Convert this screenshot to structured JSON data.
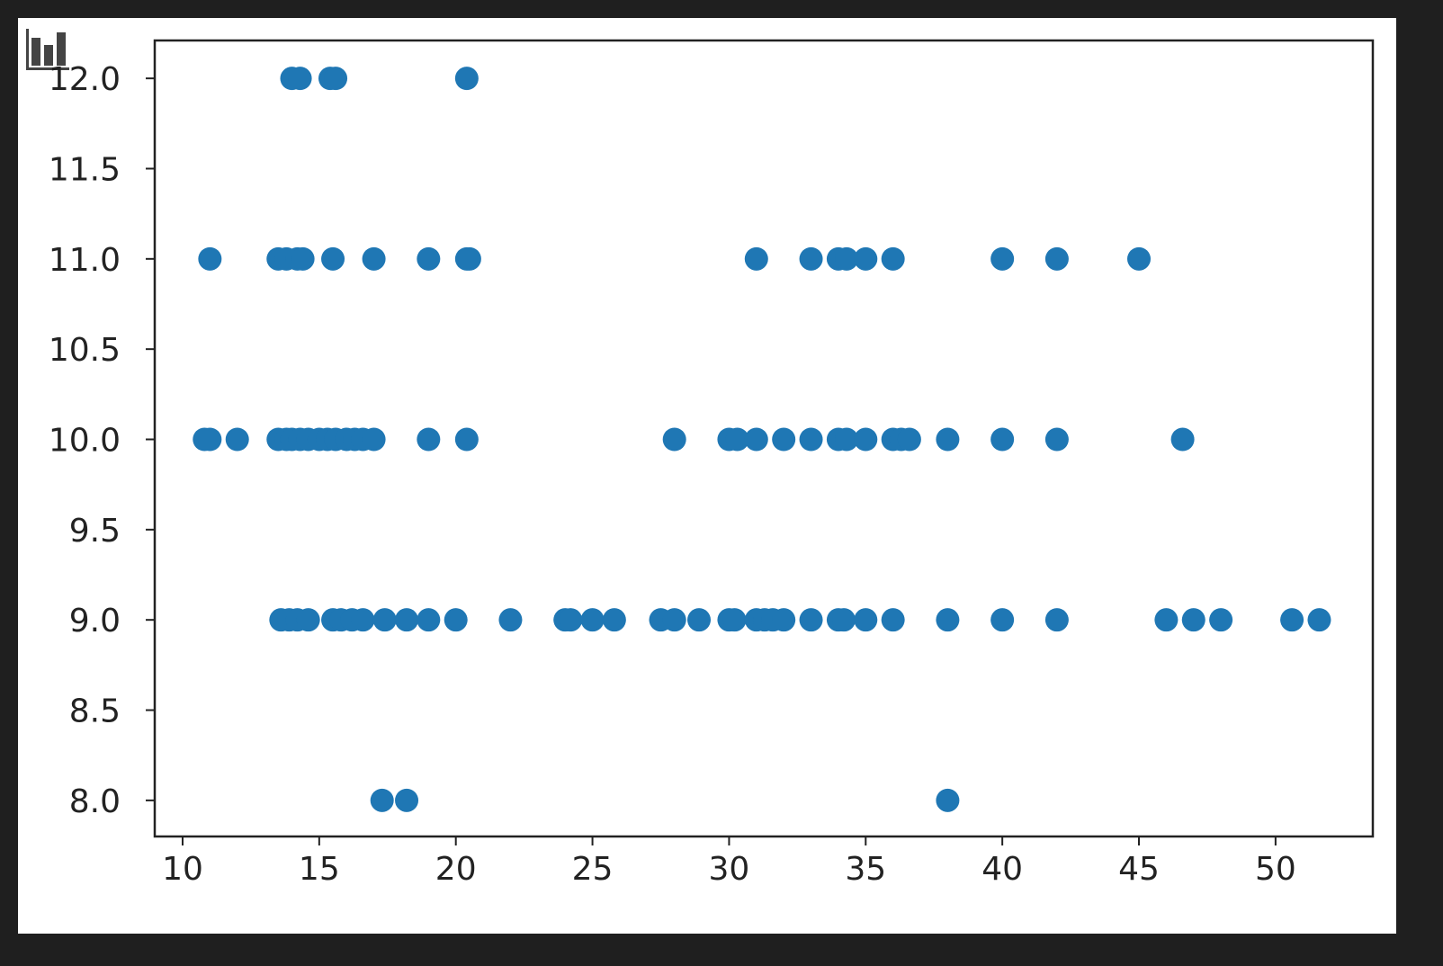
{
  "chart_data": {
    "type": "scatter",
    "title": "",
    "xlabel": "",
    "ylabel": "",
    "xlim": [
      8.98,
      53.56
    ],
    "ylim": [
      7.8,
      12.21
    ],
    "xticks": [
      "10",
      "15",
      "20",
      "25",
      "30",
      "35",
      "40",
      "45",
      "50"
    ],
    "yticks": [
      "8.0",
      "8.5",
      "9.0",
      "9.5",
      "10.0",
      "10.5",
      "11.0",
      "11.5",
      "12.0"
    ],
    "grid": false,
    "marker_color": "#1f77b4",
    "toolbar_icon": "bar-chart-icon",
    "points": [
      [
        14.0,
        12
      ],
      [
        14.3,
        12
      ],
      [
        15.4,
        12
      ],
      [
        15.6,
        12
      ],
      [
        20.4,
        12
      ],
      [
        11,
        11
      ],
      [
        13.5,
        11
      ],
      [
        13.8,
        11
      ],
      [
        14.2,
        11
      ],
      [
        14.4,
        11
      ],
      [
        15.5,
        11
      ],
      [
        17,
        11
      ],
      [
        19,
        11
      ],
      [
        20.4,
        11
      ],
      [
        20.5,
        11
      ],
      [
        31,
        11
      ],
      [
        33,
        11
      ],
      [
        34,
        11
      ],
      [
        34.3,
        11
      ],
      [
        35,
        11
      ],
      [
        36,
        11
      ],
      [
        40,
        11
      ],
      [
        42,
        11
      ],
      [
        45,
        11
      ],
      [
        10.8,
        10
      ],
      [
        11,
        10
      ],
      [
        12,
        10
      ],
      [
        13.5,
        10
      ],
      [
        13.8,
        10
      ],
      [
        14,
        10
      ],
      [
        14.3,
        10
      ],
      [
        14.6,
        10
      ],
      [
        15,
        10
      ],
      [
        15.3,
        10
      ],
      [
        15.6,
        10
      ],
      [
        16,
        10
      ],
      [
        16.3,
        10
      ],
      [
        16.6,
        10
      ],
      [
        17,
        10
      ],
      [
        19,
        10
      ],
      [
        20.4,
        10
      ],
      [
        28,
        10
      ],
      [
        30,
        10
      ],
      [
        30.3,
        10
      ],
      [
        31,
        10
      ],
      [
        32,
        10
      ],
      [
        33,
        10
      ],
      [
        34,
        10
      ],
      [
        34.3,
        10
      ],
      [
        35,
        10
      ],
      [
        36,
        10
      ],
      [
        36.3,
        10
      ],
      [
        36.6,
        10
      ],
      [
        38,
        10
      ],
      [
        40,
        10
      ],
      [
        42,
        10
      ],
      [
        46.6,
        10
      ],
      [
        13.6,
        9
      ],
      [
        13.9,
        9
      ],
      [
        14.2,
        9
      ],
      [
        14.6,
        9
      ],
      [
        15.5,
        9
      ],
      [
        15.8,
        9
      ],
      [
        16.2,
        9
      ],
      [
        16.6,
        9
      ],
      [
        17.4,
        9
      ],
      [
        18.2,
        9
      ],
      [
        19,
        9
      ],
      [
        20,
        9
      ],
      [
        22,
        9
      ],
      [
        24,
        9
      ],
      [
        24.2,
        9
      ],
      [
        25,
        9
      ],
      [
        25.8,
        9
      ],
      [
        27.5,
        9
      ],
      [
        28,
        9
      ],
      [
        28.9,
        9
      ],
      [
        30,
        9
      ],
      [
        30.2,
        9
      ],
      [
        31,
        9
      ],
      [
        31.3,
        9
      ],
      [
        31.6,
        9
      ],
      [
        32,
        9
      ],
      [
        33,
        9
      ],
      [
        34,
        9
      ],
      [
        34.2,
        9
      ],
      [
        35,
        9
      ],
      [
        36,
        9
      ],
      [
        38,
        9
      ],
      [
        40,
        9
      ],
      [
        42,
        9
      ],
      [
        46,
        9
      ],
      [
        47,
        9
      ],
      [
        48,
        9
      ],
      [
        50.6,
        9
      ],
      [
        51.6,
        9
      ],
      [
        17.3,
        8
      ],
      [
        18.2,
        8
      ],
      [
        38,
        8
      ]
    ]
  }
}
